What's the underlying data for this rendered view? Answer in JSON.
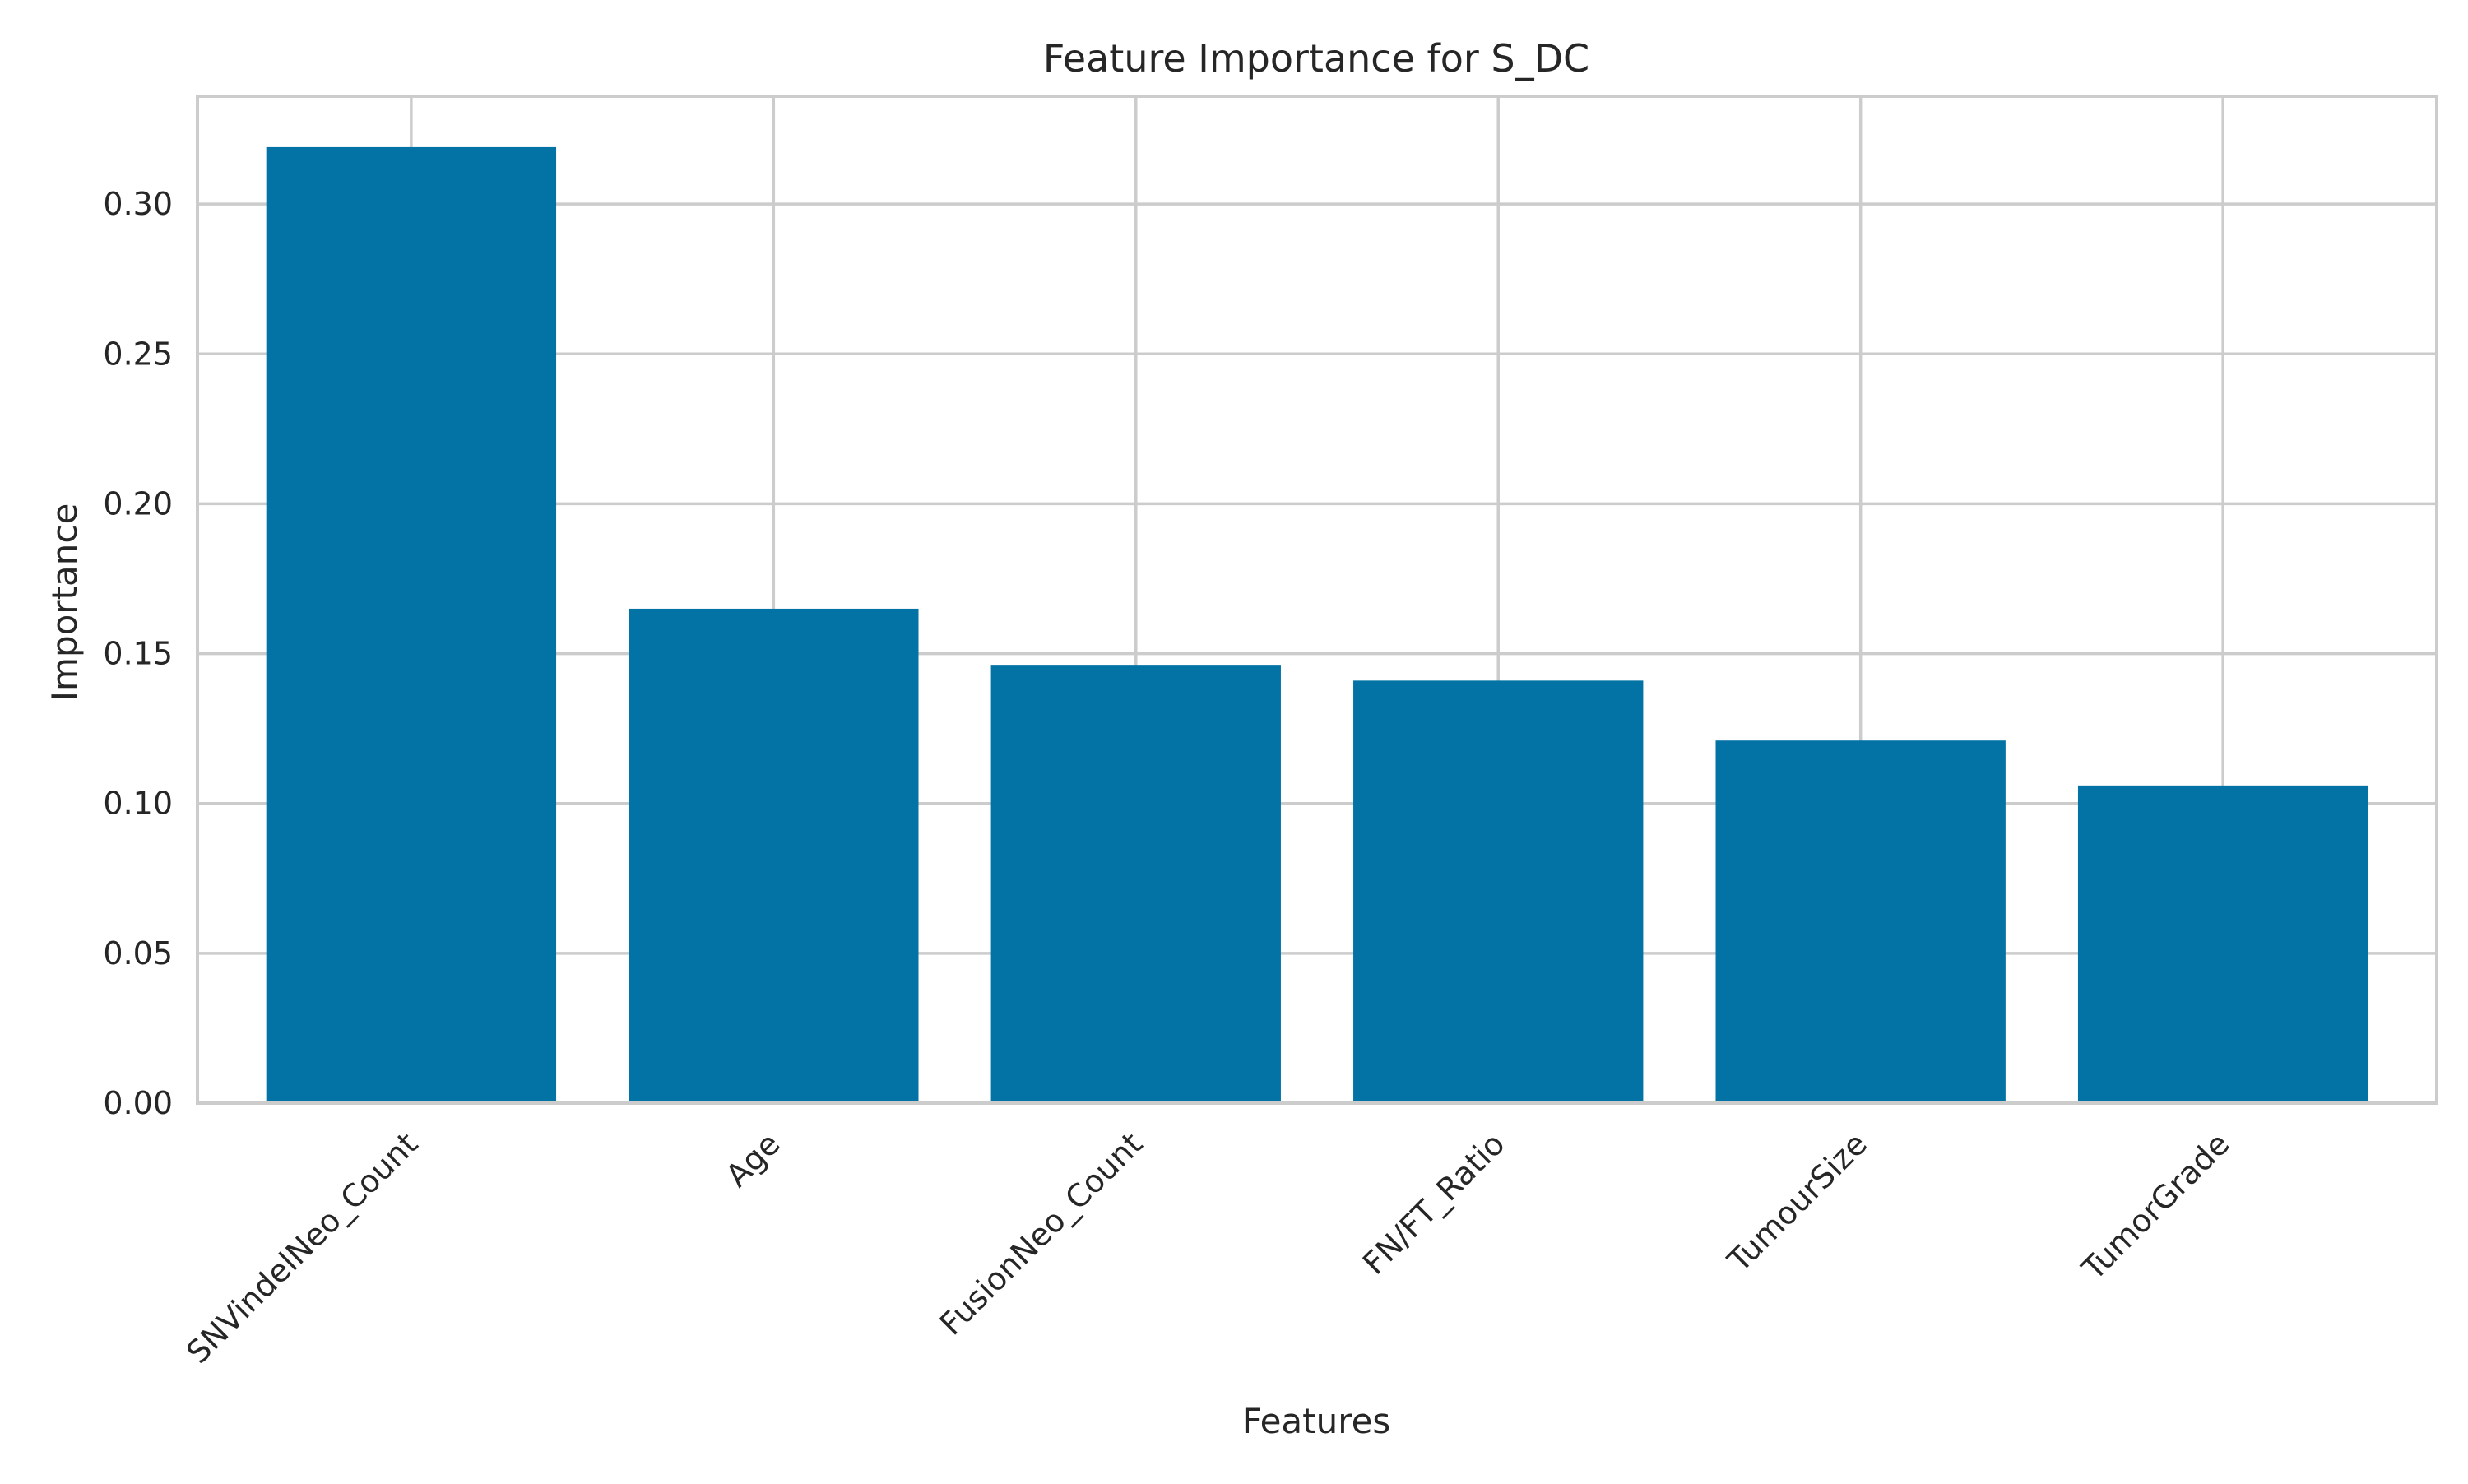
{
  "chart_data": {
    "type": "bar",
    "title": "Feature Importance for S_DC",
    "xlabel": "Features",
    "ylabel": "Importance",
    "categories": [
      "SNVindelNeo_Count",
      "Age",
      "FusionNeo_Count",
      "FN/FT_Ratio",
      "TumourSize",
      "TumorGrade"
    ],
    "values": [
      0.319,
      0.165,
      0.146,
      0.141,
      0.121,
      0.106
    ],
    "ylim": [
      0.0,
      0.336
    ],
    "yticks": [
      "0.00",
      "0.05",
      "0.10",
      "0.15",
      "0.20",
      "0.25",
      "0.30"
    ],
    "grid": true,
    "legend": "none",
    "colors": {
      "bar": "#0372a4",
      "grid": "#cccccc",
      "text": "#262626"
    }
  }
}
